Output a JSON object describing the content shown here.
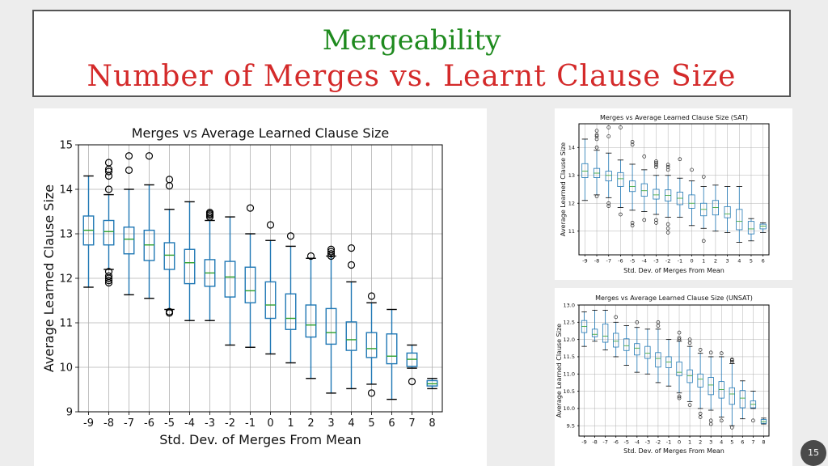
{
  "slide": {
    "title_line1": "Mergeability",
    "title_line2": "Number of Merges vs. Learnt Clause Size",
    "page_number": "15",
    "colors": {
      "title1": "#1e8a1e",
      "title2": "#d42a2a",
      "box": "#1f77b4",
      "median": "#2ca02c"
    }
  },
  "chart_data": [
    {
      "type": "box",
      "title": "Merges vs Average Learned Clause Size",
      "xlabel": "Std. Dev. of Merges From Mean",
      "ylabel": "Average Learned Clause Size",
      "ylim": [
        9,
        15
      ],
      "yticks": [
        "9",
        "10",
        "11",
        "12",
        "13",
        "14",
        "15"
      ],
      "categories": [
        "-9",
        "-8",
        "-7",
        "-6",
        "-5",
        "-4",
        "-3",
        "-2",
        "-1",
        "0",
        "1",
        "2",
        "3",
        "4",
        "5",
        "6",
        "7",
        "8"
      ],
      "grid": true,
      "boxes": [
        {
          "whislo": 11.8,
          "q1": 12.75,
          "med": 13.08,
          "q3": 13.4,
          "whishi": 14.3,
          "fliers": []
        },
        {
          "whislo": 12.2,
          "q1": 12.75,
          "med": 13.05,
          "q3": 13.3,
          "whishi": 13.88,
          "fliers": [
            14.0,
            14.3,
            14.4,
            14.45,
            14.6,
            12.15,
            12.05,
            12.0,
            11.95,
            11.9
          ]
        },
        {
          "whislo": 11.63,
          "q1": 12.55,
          "med": 12.88,
          "q3": 13.15,
          "whishi": 14.0,
          "fliers": [
            14.43,
            14.75
          ]
        },
        {
          "whislo": 11.55,
          "q1": 12.4,
          "med": 12.75,
          "q3": 13.08,
          "whishi": 14.1,
          "fliers": [
            14.75
          ]
        },
        {
          "whislo": 11.3,
          "q1": 12.2,
          "med": 12.52,
          "q3": 12.8,
          "whishi": 13.55,
          "fliers": [
            14.08,
            14.22,
            11.25,
            11.22
          ]
        },
        {
          "whislo": 11.05,
          "q1": 11.88,
          "med": 12.35,
          "q3": 12.65,
          "whishi": 13.72,
          "fliers": []
        },
        {
          "whislo": 11.05,
          "q1": 11.82,
          "med": 12.12,
          "q3": 12.42,
          "whishi": 13.3,
          "fliers": [
            13.38,
            13.42,
            13.45,
            13.48
          ]
        },
        {
          "whislo": 10.5,
          "q1": 11.58,
          "med": 12.03,
          "q3": 12.38,
          "whishi": 13.38,
          "fliers": []
        },
        {
          "whislo": 10.45,
          "q1": 11.45,
          "med": 11.72,
          "q3": 12.25,
          "whishi": 13.0,
          "fliers": [
            13.58
          ]
        },
        {
          "whislo": 10.3,
          "q1": 11.1,
          "med": 11.4,
          "q3": 11.92,
          "whishi": 12.85,
          "fliers": [
            13.2
          ]
        },
        {
          "whislo": 10.1,
          "q1": 10.85,
          "med": 11.1,
          "q3": 11.65,
          "whishi": 12.72,
          "fliers": [
            12.95
          ]
        },
        {
          "whislo": 9.75,
          "q1": 10.68,
          "med": 10.95,
          "q3": 11.4,
          "whishi": 12.45,
          "fliers": [
            12.5
          ]
        },
        {
          "whislo": 9.42,
          "q1": 10.52,
          "med": 10.78,
          "q3": 11.32,
          "whishi": 12.5,
          "fliers": [
            12.5,
            12.55,
            12.6,
            12.65
          ]
        },
        {
          "whislo": 9.52,
          "q1": 10.38,
          "med": 10.62,
          "q3": 11.02,
          "whishi": 11.92,
          "fliers": [
            12.3,
            12.68
          ]
        },
        {
          "whislo": 9.62,
          "q1": 10.22,
          "med": 10.42,
          "q3": 10.78,
          "whishi": 11.45,
          "fliers": [
            11.6,
            9.42
          ]
        },
        {
          "whislo": 9.28,
          "q1": 10.08,
          "med": 10.25,
          "q3": 10.75,
          "whishi": 11.3,
          "fliers": []
        },
        {
          "whislo": 9.98,
          "q1": 10.02,
          "med": 10.18,
          "q3": 10.32,
          "whishi": 10.5,
          "fliers": [
            9.68
          ]
        },
        {
          "whislo": 9.52,
          "q1": 9.58,
          "med": 9.63,
          "q3": 9.7,
          "whishi": 9.75,
          "fliers": []
        }
      ]
    },
    {
      "type": "box",
      "title": "Merges vs Average Learned Clause Size (SAT)",
      "xlabel": "Std. Dev. of Merges From Mean",
      "ylabel": "Average Learned Clause Size",
      "ylim": [
        10.15,
        14.85
      ],
      "yticks": [
        "11",
        "12",
        "13",
        "14"
      ],
      "categories": [
        "-9",
        "-8",
        "-7",
        "-6",
        "-5",
        "-4",
        "-3",
        "-2",
        "-1",
        "0",
        "1",
        "2",
        "3",
        "4",
        "5",
        "6"
      ],
      "grid": true,
      "boxes": [
        {
          "whislo": 12.1,
          "q1": 12.92,
          "med": 13.15,
          "q3": 13.42,
          "whishi": 14.3,
          "fliers": []
        },
        {
          "whislo": 12.3,
          "q1": 12.92,
          "med": 13.08,
          "q3": 13.25,
          "whishi": 13.9,
          "fliers": [
            14.0,
            14.3,
            14.4,
            14.45,
            14.6,
            12.25
          ]
        },
        {
          "whislo": 12.2,
          "q1": 12.8,
          "med": 13.0,
          "q3": 13.15,
          "whishi": 13.8,
          "fliers": [
            14.4,
            14.72,
            12.0,
            11.9
          ]
        },
        {
          "whislo": 11.85,
          "q1": 12.6,
          "med": 12.88,
          "q3": 13.1,
          "whishi": 13.55,
          "fliers": [
            14.72,
            11.6
          ]
        },
        {
          "whislo": 11.75,
          "q1": 12.42,
          "med": 12.6,
          "q3": 12.8,
          "whishi": 13.4,
          "fliers": [
            14.1,
            14.2,
            11.3,
            11.2
          ]
        },
        {
          "whislo": 11.7,
          "q1": 12.25,
          "med": 12.45,
          "q3": 12.7,
          "whishi": 13.2,
          "fliers": [
            13.68,
            11.4
          ]
        },
        {
          "whislo": 11.6,
          "q1": 12.15,
          "med": 12.3,
          "q3": 12.5,
          "whishi": 13.0,
          "fliers": [
            13.3,
            13.38,
            13.45,
            13.5,
            11.4,
            11.3
          ]
        },
        {
          "whislo": 11.5,
          "q1": 12.08,
          "med": 12.28,
          "q3": 12.48,
          "whishi": 13.0,
          "fliers": [
            13.2,
            13.3,
            13.38,
            11.25,
            11.1,
            10.95
          ]
        },
        {
          "whislo": 11.5,
          "q1": 11.95,
          "med": 12.18,
          "q3": 12.4,
          "whishi": 12.9,
          "fliers": [
            13.58
          ]
        },
        {
          "whislo": 11.2,
          "q1": 11.82,
          "med": 12.0,
          "q3": 12.3,
          "whishi": 12.8,
          "fliers": [
            13.2
          ]
        },
        {
          "whislo": 11.1,
          "q1": 11.55,
          "med": 11.78,
          "q3": 12.0,
          "whishi": 12.6,
          "fliers": [
            12.95,
            10.65
          ]
        },
        {
          "whislo": 11.0,
          "q1": 11.58,
          "med": 11.85,
          "q3": 12.1,
          "whishi": 12.65,
          "fliers": []
        },
        {
          "whislo": 10.95,
          "q1": 11.48,
          "med": 11.62,
          "q3": 11.88,
          "whishi": 12.6,
          "fliers": []
        },
        {
          "whislo": 10.6,
          "q1": 11.05,
          "med": 11.35,
          "q3": 11.78,
          "whishi": 12.6,
          "fliers": []
        },
        {
          "whislo": 10.65,
          "q1": 10.9,
          "med": 11.08,
          "q3": 11.35,
          "whishi": 11.45,
          "fliers": []
        },
        {
          "whislo": 10.95,
          "q1": 11.08,
          "med": 11.18,
          "q3": 11.25,
          "whishi": 11.3,
          "fliers": []
        }
      ]
    },
    {
      "type": "box",
      "title": "Merges vs Average Learned Clause Size (UNSAT)",
      "xlabel": "Std. Dev. of Merges From Mean",
      "ylabel": "Average Learned Clause Size",
      "ylim": [
        9.2,
        13.0
      ],
      "yticks": [
        "9.5",
        "10.0",
        "10.5",
        "11.0",
        "11.5",
        "12.0",
        "12.5",
        "13.0"
      ],
      "categories": [
        "-9",
        "-8",
        "-7",
        "-6",
        "-5",
        "-4",
        "-3",
        "-2",
        "-1",
        "0",
        "1",
        "2",
        "3",
        "4",
        "5",
        "6",
        "7",
        "8"
      ],
      "grid": true,
      "boxes": [
        {
          "whislo": 11.8,
          "q1": 12.2,
          "med": 12.38,
          "q3": 12.55,
          "whishi": 12.8,
          "fliers": []
        },
        {
          "whislo": 11.95,
          "q1": 12.08,
          "med": 12.15,
          "q3": 12.3,
          "whishi": 12.85,
          "fliers": []
        },
        {
          "whislo": 11.7,
          "q1": 11.92,
          "med": 12.1,
          "q3": 12.45,
          "whishi": 12.85,
          "fliers": []
        },
        {
          "whislo": 11.5,
          "q1": 11.78,
          "med": 11.95,
          "q3": 12.18,
          "whishi": 12.5,
          "fliers": [
            12.65
          ]
        },
        {
          "whislo": 11.25,
          "q1": 11.68,
          "med": 11.82,
          "q3": 12.02,
          "whishi": 12.4,
          "fliers": []
        },
        {
          "whislo": 11.05,
          "q1": 11.55,
          "med": 11.75,
          "q3": 11.88,
          "whishi": 12.35,
          "fliers": [
            12.5
          ]
        },
        {
          "whislo": 11.0,
          "q1": 11.45,
          "med": 11.6,
          "q3": 11.8,
          "whishi": 12.3,
          "fliers": []
        },
        {
          "whislo": 10.75,
          "q1": 11.2,
          "med": 11.45,
          "q3": 11.62,
          "whishi": 12.3,
          "fliers": [
            12.4,
            12.5
          ]
        },
        {
          "whislo": 10.65,
          "q1": 11.18,
          "med": 11.35,
          "q3": 11.5,
          "whishi": 12.0,
          "fliers": []
        },
        {
          "whislo": 10.45,
          "q1": 10.95,
          "med": 11.05,
          "q3": 11.35,
          "whishi": 11.95,
          "fliers": [
            12.0,
            12.05,
            12.2,
            10.35,
            10.3
          ]
        },
        {
          "whislo": 10.2,
          "q1": 10.75,
          "med": 10.95,
          "q3": 11.12,
          "whishi": 11.8,
          "fliers": [
            11.9,
            12.0,
            10.1
          ]
        },
        {
          "whislo": 10.0,
          "q1": 10.62,
          "med": 10.85,
          "q3": 11.0,
          "whishi": 11.6,
          "fliers": [
            11.7,
            9.85,
            9.75
          ]
        },
        {
          "whislo": 9.95,
          "q1": 10.4,
          "med": 10.68,
          "q3": 10.9,
          "whishi": 11.5,
          "fliers": [
            11.62,
            9.65,
            9.55
          ]
        },
        {
          "whislo": 9.75,
          "q1": 10.3,
          "med": 10.55,
          "q3": 10.78,
          "whishi": 11.5,
          "fliers": [
            11.6,
            9.65
          ]
        },
        {
          "whislo": 9.5,
          "q1": 10.12,
          "med": 10.42,
          "q3": 10.6,
          "whishi": 11.3,
          "fliers": [
            11.35,
            11.4,
            11.42,
            9.45
          ]
        },
        {
          "whislo": 9.7,
          "q1": 10.02,
          "med": 10.3,
          "q3": 10.52,
          "whishi": 10.8,
          "fliers": []
        },
        {
          "whislo": 10.0,
          "q1": 10.02,
          "med": 10.12,
          "q3": 10.22,
          "whishi": 10.5,
          "fliers": [
            9.65
          ]
        },
        {
          "whislo": 9.55,
          "q1": 9.57,
          "med": 9.62,
          "q3": 9.68,
          "whishi": 9.72,
          "fliers": []
        }
      ]
    }
  ]
}
